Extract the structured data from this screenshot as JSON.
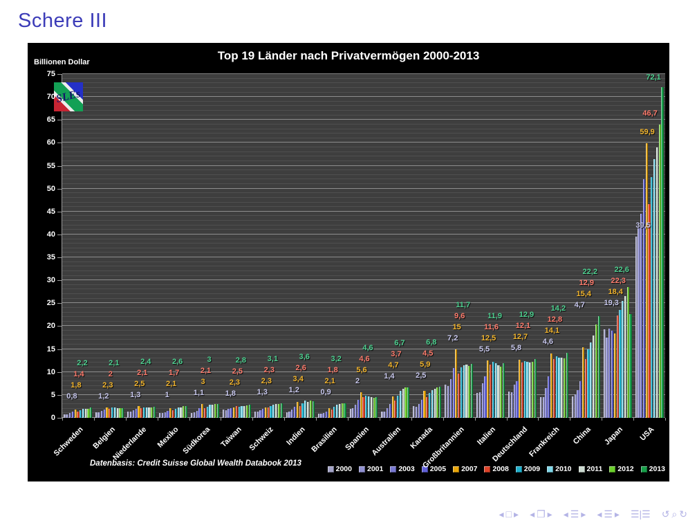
{
  "slide": {
    "title": "Schere III"
  },
  "chart_data": {
    "type": "bar",
    "title": "Top 19 Länder nach Privatvermögen 2000-2013",
    "ylabel": "Billionen Dollar",
    "ylim": [
      0,
      75
    ],
    "y_tick_step": 5,
    "grid": "on",
    "legend_position": "bottom",
    "source": "Datenbasis: Credit Suisse Global Wealth Databook 2013",
    "logo_text": "SLEs",
    "categories": [
      "Schweden",
      "Belgien",
      "Niederlande",
      "Mexiko",
      "Südkorea",
      "Taiwan",
      "Schweiz",
      "Indien",
      "Brasilien",
      "Spanien",
      "Australien",
      "Kanada",
      "Großbritannien",
      "Italien",
      "Deutschland",
      "Frankreich",
      "China",
      "Japan",
      "USA"
    ],
    "years": [
      "2000",
      "2001",
      "2003",
      "2005",
      "2007",
      "2008",
      "2009",
      "2010",
      "2011",
      "2012",
      "2013"
    ],
    "labeled_years": [
      "2000",
      "2007",
      "2008",
      "2013"
    ],
    "label_colors": {
      "2000": "#c9c9ee",
      "2007": "#f2b52e",
      "2008": "#ff7d6e",
      "2013": "#4fd191"
    },
    "series": [
      {
        "name": "2000",
        "color": "#a2a2c6",
        "values": [
          0.8,
          1.2,
          1.3,
          1.0,
          1.1,
          1.8,
          1.3,
          1.2,
          0.9,
          2.0,
          1.4,
          2.5,
          7.2,
          5.5,
          5.8,
          4.6,
          4.7,
          19.3,
          39.5
        ]
      },
      {
        "name": "2001",
        "color": "#9090d0",
        "values": [
          0.8,
          1.2,
          1.3,
          1.1,
          1.2,
          1.7,
          1.3,
          1.3,
          0.9,
          2.1,
          1.4,
          2.4,
          7.0,
          5.6,
          5.6,
          4.5,
          5.2,
          17.5,
          41.5
        ]
      },
      {
        "name": "2003",
        "color": "#7878d0",
        "values": [
          1.1,
          1.5,
          1.6,
          1.2,
          1.5,
          2.0,
          1.7,
          1.8,
          1.0,
          2.8,
          2.1,
          3.0,
          8.5,
          7.5,
          7.2,
          6.5,
          6.0,
          19.5,
          44.5
        ]
      },
      {
        "name": "2005",
        "color": "#6060d8",
        "values": [
          1.3,
          1.8,
          1.9,
          1.5,
          2.1,
          2.1,
          1.9,
          2.4,
          1.4,
          4.0,
          3.0,
          3.9,
          10.9,
          9.0,
          8.0,
          9.0,
          8.0,
          19.0,
          52.0
        ]
      },
      {
        "name": "2007",
        "color": "#eaa70a",
        "values": [
          1.8,
          2.3,
          2.5,
          2.1,
          3.0,
          2.3,
          2.3,
          3.4,
          2.1,
          5.6,
          4.7,
          5.9,
          15,
          12.5,
          12.7,
          14.1,
          15.4,
          18.4,
          59.9
        ]
      },
      {
        "name": "2008",
        "color": "#de4228",
        "values": [
          1.4,
          2.0,
          2.1,
          1.7,
          2.1,
          2.5,
          2.3,
          2.6,
          1.8,
          4.6,
          3.7,
          4.5,
          9.6,
          11.6,
          12.1,
          12.8,
          12.9,
          22.3,
          46.7
        ]
      },
      {
        "name": "2009",
        "color": "#1fb0cc",
        "values": [
          1.7,
          2.2,
          2.3,
          1.9,
          2.4,
          2.4,
          2.6,
          3.2,
          2.4,
          4.9,
          4.9,
          5.5,
          11.0,
          12.2,
          12.4,
          13.5,
          15.0,
          23.5,
          52.5
        ]
      },
      {
        "name": "2010",
        "color": "#7fd6e8",
        "values": [
          2.0,
          2.2,
          2.3,
          2.2,
          2.8,
          2.6,
          2.9,
          3.8,
          2.9,
          4.7,
          5.9,
          6.1,
          11.5,
          11.9,
          12.2,
          13.2,
          16.5,
          25.5,
          56.5
        ]
      },
      {
        "name": "2011",
        "color": "#ccdad0",
        "values": [
          1.9,
          2.1,
          2.2,
          2.3,
          2.9,
          2.6,
          3.0,
          3.5,
          3.0,
          4.5,
          6.4,
          6.4,
          11.6,
          11.5,
          12.0,
          13.1,
          18.0,
          26.5,
          59.0
        ]
      },
      {
        "name": "2012",
        "color": "#6bcf2b",
        "values": [
          2.0,
          2.1,
          2.3,
          2.5,
          3.0,
          2.7,
          3.0,
          3.7,
          3.1,
          4.4,
          6.6,
          6.7,
          11.3,
          11.2,
          12.2,
          13.0,
          20.4,
          28.5,
          64.0
        ]
      },
      {
        "name": "2013",
        "color": "#179e49",
        "values": [
          2.2,
          2.1,
          2.4,
          2.6,
          3.0,
          2.8,
          3.1,
          3.6,
          3.2,
          4.6,
          6.7,
          6.8,
          11.7,
          11.9,
          12.9,
          14.2,
          22.2,
          22.6,
          72.1
        ]
      }
    ]
  },
  "nav": {
    "icons": [
      {
        "name": "nav-prev-slide-icon",
        "glyph": "◂",
        "gap": false
      },
      {
        "name": "nav-slide-icon",
        "glyph": "□",
        "gap": false
      },
      {
        "name": "nav-next-slide-icon",
        "glyph": "▸",
        "gap": false
      },
      {
        "name": "nav-prev-frame-icon",
        "glyph": "◂",
        "gap": true
      },
      {
        "name": "nav-frame-icon",
        "glyph": "❐",
        "gap": false
      },
      {
        "name": "nav-next-frame-icon",
        "glyph": "▸",
        "gap": false
      },
      {
        "name": "nav-prev-subsection-icon",
        "glyph": "◂",
        "gap": true
      },
      {
        "name": "nav-subsection-icon",
        "glyph": "☰",
        "gap": false
      },
      {
        "name": "nav-next-subsection-icon",
        "glyph": "▸",
        "gap": false
      },
      {
        "name": "nav-prev-section-icon",
        "glyph": "◂",
        "gap": true
      },
      {
        "name": "nav-section-icon",
        "glyph": "☰",
        "gap": false
      },
      {
        "name": "nav-next-section-icon",
        "glyph": "▸",
        "gap": false
      },
      {
        "name": "nav-appendix-icon",
        "glyph": "☰|☰",
        "gap": true
      },
      {
        "name": "nav-back-icon",
        "glyph": "↺",
        "gap": true
      },
      {
        "name": "nav-search-icon",
        "glyph": "⌕",
        "gap": false
      },
      {
        "name": "nav-forward-icon",
        "glyph": "↻",
        "gap": false
      }
    ]
  }
}
